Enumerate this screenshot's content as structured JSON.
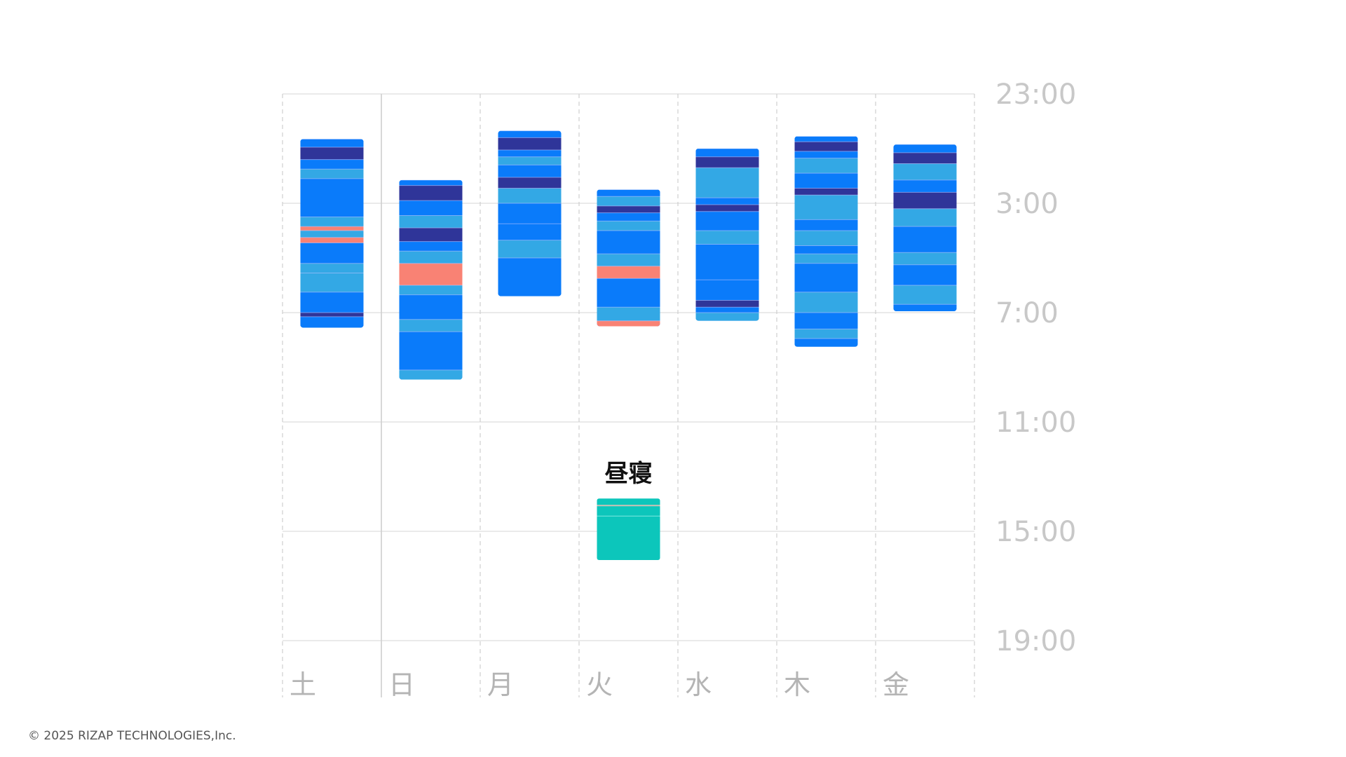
{
  "footer": {
    "copyright": "© 2025 RIZAP TECHNOLOGIES,Inc."
  },
  "colors": {
    "deep": "#2f3599",
    "light": "#0a7bfa",
    "rem": "#33a8e5",
    "awake": "#f98274",
    "nap": "#0cc6bb",
    "grid": "#e3e3e3",
    "tick_text": "#c8c8c8"
  },
  "chart_data": {
    "type": "sleep-timeline",
    "title": "",
    "xlabel": "",
    "ylabel": "",
    "y_axis_start": "23:00",
    "y_axis_span_hours": 20,
    "y_ticks": [
      "23:00",
      "3:00",
      "7:00",
      "11:00",
      "15:00",
      "19:00"
    ],
    "days": [
      "土",
      "日",
      "月",
      "火",
      "水",
      "木",
      "金"
    ],
    "sessions": [
      {
        "day": "土",
        "start": 1.65,
        "end": 8.55,
        "stages": [
          {
            "from": 1.65,
            "to": 1.95,
            "stage": "light"
          },
          {
            "from": 1.95,
            "to": 2.4,
            "stage": "deep"
          },
          {
            "from": 2.4,
            "to": 2.75,
            "stage": "light"
          },
          {
            "from": 2.75,
            "to": 3.1,
            "stage": "rem"
          },
          {
            "from": 3.1,
            "to": 4.5,
            "stage": "light"
          },
          {
            "from": 4.5,
            "to": 4.85,
            "stage": "rem"
          },
          {
            "from": 4.85,
            "to": 5.0,
            "stage": "awake"
          },
          {
            "from": 5.0,
            "to": 5.25,
            "stage": "rem"
          },
          {
            "from": 5.25,
            "to": 5.45,
            "stage": "awake"
          },
          {
            "from": 5.45,
            "to": 6.2,
            "stage": "light"
          },
          {
            "from": 6.2,
            "to": 6.55,
            "stage": "rem"
          },
          {
            "from": 6.55,
            "to": 7.25,
            "stage": "rem"
          },
          {
            "from": 7.25,
            "to": 8.0,
            "stage": "light"
          },
          {
            "from": 8.0,
            "to": 8.15,
            "stage": "deep"
          },
          {
            "from": 8.15,
            "to": 8.55,
            "stage": "light"
          }
        ]
      },
      {
        "day": "日",
        "start": 3.15,
        "end": 10.45,
        "stages": [
          {
            "from": 3.15,
            "to": 3.35,
            "stage": "light"
          },
          {
            "from": 3.35,
            "to": 3.9,
            "stage": "deep"
          },
          {
            "from": 3.9,
            "to": 4.45,
            "stage": "light"
          },
          {
            "from": 4.45,
            "to": 4.9,
            "stage": "rem"
          },
          {
            "from": 4.9,
            "to": 5.4,
            "stage": "deep"
          },
          {
            "from": 5.4,
            "to": 5.75,
            "stage": "light"
          },
          {
            "from": 5.75,
            "to": 6.2,
            "stage": "rem"
          },
          {
            "from": 6.2,
            "to": 7.0,
            "stage": "awake"
          },
          {
            "from": 7.0,
            "to": 7.35,
            "stage": "rem"
          },
          {
            "from": 7.35,
            "to": 8.25,
            "stage": "light"
          },
          {
            "from": 8.25,
            "to": 8.7,
            "stage": "rem"
          },
          {
            "from": 8.7,
            "to": 10.1,
            "stage": "light"
          },
          {
            "from": 10.1,
            "to": 10.45,
            "stage": "rem"
          }
        ]
      },
      {
        "day": "月",
        "start": 1.35,
        "end": 7.4,
        "stages": [
          {
            "from": 1.35,
            "to": 1.6,
            "stage": "light"
          },
          {
            "from": 1.6,
            "to": 2.05,
            "stage": "deep"
          },
          {
            "from": 2.05,
            "to": 2.3,
            "stage": "light"
          },
          {
            "from": 2.3,
            "to": 2.6,
            "stage": "rem"
          },
          {
            "from": 2.6,
            "to": 3.05,
            "stage": "light"
          },
          {
            "from": 3.05,
            "to": 3.45,
            "stage": "deep"
          },
          {
            "from": 3.45,
            "to": 4.0,
            "stage": "rem"
          },
          {
            "from": 4.0,
            "to": 4.75,
            "stage": "light"
          },
          {
            "from": 4.75,
            "to": 5.35,
            "stage": "light"
          },
          {
            "from": 5.35,
            "to": 6.0,
            "stage": "rem"
          },
          {
            "from": 6.0,
            "to": 7.4,
            "stage": "light"
          }
        ]
      },
      {
        "day": "火",
        "start": 3.5,
        "end": 8.5,
        "stages": [
          {
            "from": 3.5,
            "to": 3.75,
            "stage": "light"
          },
          {
            "from": 3.75,
            "to": 4.1,
            "stage": "rem"
          },
          {
            "from": 4.1,
            "to": 4.35,
            "stage": "deep"
          },
          {
            "from": 4.35,
            "to": 4.65,
            "stage": "light"
          },
          {
            "from": 4.65,
            "to": 5.0,
            "stage": "rem"
          },
          {
            "from": 5.0,
            "to": 5.85,
            "stage": "light"
          },
          {
            "from": 5.85,
            "to": 6.3,
            "stage": "rem"
          },
          {
            "from": 6.3,
            "to": 6.75,
            "stage": "awake"
          },
          {
            "from": 6.75,
            "to": 7.8,
            "stage": "light"
          },
          {
            "from": 7.8,
            "to": 8.3,
            "stage": "rem"
          },
          {
            "from": 8.3,
            "to": 8.5,
            "stage": "awake"
          }
        ]
      },
      {
        "day": "水",
        "start": 2.0,
        "end": 8.3,
        "stages": [
          {
            "from": 2.0,
            "to": 2.3,
            "stage": "light"
          },
          {
            "from": 2.3,
            "to": 2.7,
            "stage": "deep"
          },
          {
            "from": 2.7,
            "to": 3.8,
            "stage": "rem"
          },
          {
            "from": 3.8,
            "to": 4.05,
            "stage": "light"
          },
          {
            "from": 4.05,
            "to": 4.3,
            "stage": "deep"
          },
          {
            "from": 4.3,
            "to": 5.0,
            "stage": "light"
          },
          {
            "from": 5.0,
            "to": 5.5,
            "stage": "rem"
          },
          {
            "from": 5.5,
            "to": 6.8,
            "stage": "light"
          },
          {
            "from": 6.8,
            "to": 7.55,
            "stage": "light"
          },
          {
            "from": 7.55,
            "to": 7.8,
            "stage": "deep"
          },
          {
            "from": 7.8,
            "to": 8.0,
            "stage": "light"
          },
          {
            "from": 8.0,
            "to": 8.3,
            "stage": "rem"
          }
        ]
      },
      {
        "day": "木",
        "start": 1.55,
        "end": 9.25,
        "stages": [
          {
            "from": 1.55,
            "to": 1.75,
            "stage": "light"
          },
          {
            "from": 1.75,
            "to": 2.1,
            "stage": "deep"
          },
          {
            "from": 2.1,
            "to": 2.35,
            "stage": "light"
          },
          {
            "from": 2.35,
            "to": 2.9,
            "stage": "rem"
          },
          {
            "from": 2.9,
            "to": 3.45,
            "stage": "light"
          },
          {
            "from": 3.45,
            "to": 3.7,
            "stage": "deep"
          },
          {
            "from": 3.7,
            "to": 4.6,
            "stage": "rem"
          },
          {
            "from": 4.6,
            "to": 5.0,
            "stage": "light"
          },
          {
            "from": 5.0,
            "to": 5.55,
            "stage": "rem"
          },
          {
            "from": 5.55,
            "to": 5.85,
            "stage": "light"
          },
          {
            "from": 5.85,
            "to": 6.2,
            "stage": "rem"
          },
          {
            "from": 6.2,
            "to": 7.25,
            "stage": "light"
          },
          {
            "from": 7.25,
            "to": 8.0,
            "stage": "rem"
          },
          {
            "from": 8.0,
            "to": 8.6,
            "stage": "light"
          },
          {
            "from": 8.6,
            "to": 8.95,
            "stage": "rem"
          },
          {
            "from": 8.95,
            "to": 9.25,
            "stage": "light"
          }
        ]
      },
      {
        "day": "金",
        "start": 1.85,
        "end": 7.95,
        "stages": [
          {
            "from": 1.85,
            "to": 2.15,
            "stage": "light"
          },
          {
            "from": 2.15,
            "to": 2.55,
            "stage": "deep"
          },
          {
            "from": 2.55,
            "to": 3.15,
            "stage": "rem"
          },
          {
            "from": 3.15,
            "to": 3.6,
            "stage": "light"
          },
          {
            "from": 3.6,
            "to": 4.2,
            "stage": "deep"
          },
          {
            "from": 4.2,
            "to": 4.85,
            "stage": "rem"
          },
          {
            "from": 4.85,
            "to": 5.8,
            "stage": "light"
          },
          {
            "from": 5.8,
            "to": 6.25,
            "stage": "rem"
          },
          {
            "from": 6.25,
            "to": 7.0,
            "stage": "light"
          },
          {
            "from": 7.0,
            "to": 7.7,
            "stage": "rem"
          },
          {
            "from": 7.7,
            "to": 7.95,
            "stage": "light"
          }
        ]
      }
    ],
    "nap": {
      "day": "火",
      "label": "昼寝",
      "start": 14.8,
      "end": 17.05
    }
  }
}
